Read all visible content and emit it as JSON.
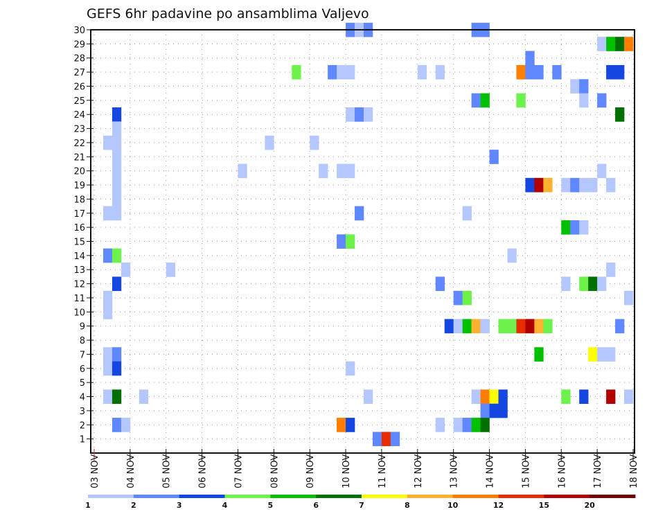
{
  "chart_data": {
    "type": "heatmap",
    "title": "GEFS 6hr padavine po ansamblima Valjevo",
    "xlabel": "",
    "ylabel": "",
    "x_step_hours": 6,
    "x_start": "03 NOV 00Z",
    "x_tick_labels": [
      "03 NOV",
      "04 NOV",
      "05 NOV",
      "06 NOV",
      "07 NOV",
      "08 NOV",
      "09 NOV",
      "10 NOV",
      "11 NOV",
      "12 NOV",
      "13 NOV",
      "14 NOV",
      "15 NOV",
      "16 NOV",
      "17 NOV",
      "18 NOV"
    ],
    "y_tick_labels": [
      "1",
      "2",
      "3",
      "4",
      "5",
      "6",
      "7",
      "8",
      "9",
      "10",
      "11",
      "12",
      "13",
      "14",
      "15",
      "16",
      "17",
      "18",
      "19",
      "20",
      "21",
      "22",
      "23",
      "24",
      "25",
      "26",
      "27",
      "28",
      "29",
      "30"
    ],
    "ylim": [
      0,
      30
    ],
    "grid": true,
    "colorbar": {
      "placement": "bottom",
      "boundaries": [
        "1",
        "2",
        "3",
        "4",
        "5",
        "6",
        "7",
        "8",
        "10",
        "12",
        "15",
        "20"
      ],
      "colors": [
        "#b4c8ff",
        "#5f87ff",
        "#1446e1",
        "#6cf24a",
        "#00c000",
        "#007000",
        "#ffff00",
        "#ffb030",
        "#ff7d00",
        "#e62d00",
        "#b00000",
        "#6e0000"
      ]
    },
    "cells_note": "each cell: [member (row), time-step index from 03 NOV 00Z in 6h steps, color class 1-12]",
    "cells": [
      [
        30,
        28,
        2
      ],
      [
        30,
        29,
        1
      ],
      [
        30,
        30,
        2
      ],
      [
        30,
        42,
        2
      ],
      [
        30,
        43,
        2
      ],
      [
        29,
        56,
        1
      ],
      [
        29,
        57,
        5
      ],
      [
        29,
        58,
        6
      ],
      [
        29,
        59,
        9
      ],
      [
        28,
        48,
        2
      ],
      [
        27,
        22,
        4
      ],
      [
        27,
        26,
        2
      ],
      [
        27,
        27,
        1
      ],
      [
        27,
        28,
        1
      ],
      [
        27,
        36,
        1
      ],
      [
        27,
        38,
        1
      ],
      [
        27,
        47,
        9
      ],
      [
        27,
        48,
        2
      ],
      [
        27,
        49,
        2
      ],
      [
        27,
        51,
        2
      ],
      [
        27,
        57,
        3
      ],
      [
        27,
        58,
        3
      ],
      [
        26,
        53,
        1
      ],
      [
        26,
        54,
        2
      ],
      [
        25,
        42,
        2
      ],
      [
        25,
        43,
        5
      ],
      [
        25,
        47,
        4
      ],
      [
        25,
        54,
        1
      ],
      [
        25,
        56,
        2
      ],
      [
        24,
        2,
        3
      ],
      [
        24,
        28,
        1
      ],
      [
        24,
        29,
        2
      ],
      [
        24,
        30,
        1
      ],
      [
        24,
        58,
        6
      ],
      [
        23,
        2,
        1
      ],
      [
        22,
        1,
        1
      ],
      [
        22,
        2,
        1
      ],
      [
        22,
        19,
        1
      ],
      [
        22,
        24,
        1
      ],
      [
        21,
        2,
        1
      ],
      [
        21,
        44,
        2
      ],
      [
        20,
        2,
        1
      ],
      [
        20,
        16,
        1
      ],
      [
        20,
        25,
        1
      ],
      [
        20,
        27,
        1
      ],
      [
        20,
        28,
        1
      ],
      [
        20,
        56,
        1
      ],
      [
        19,
        2,
        1
      ],
      [
        19,
        48,
        3
      ],
      [
        19,
        49,
        11
      ],
      [
        19,
        50,
        8
      ],
      [
        19,
        52,
        1
      ],
      [
        19,
        53,
        2
      ],
      [
        19,
        54,
        1
      ],
      [
        19,
        55,
        1
      ],
      [
        19,
        57,
        1
      ],
      [
        18,
        2,
        1
      ],
      [
        17,
        1,
        1
      ],
      [
        17,
        2,
        1
      ],
      [
        17,
        29,
        2
      ],
      [
        17,
        41,
        1
      ],
      [
        16,
        52,
        5
      ],
      [
        16,
        53,
        2
      ],
      [
        16,
        54,
        1
      ],
      [
        15,
        27,
        2
      ],
      [
        15,
        28,
        4
      ],
      [
        14,
        1,
        2
      ],
      [
        14,
        2,
        4
      ],
      [
        14,
        46,
        1
      ],
      [
        13,
        3,
        1
      ],
      [
        13,
        8,
        1
      ],
      [
        13,
        57,
        1
      ],
      [
        12,
        2,
        3
      ],
      [
        12,
        38,
        2
      ],
      [
        12,
        52,
        1
      ],
      [
        12,
        54,
        4
      ],
      [
        12,
        55,
        6
      ],
      [
        12,
        56,
        1
      ],
      [
        11,
        1,
        1
      ],
      [
        11,
        40,
        2
      ],
      [
        11,
        41,
        4
      ],
      [
        11,
        59,
        1
      ],
      [
        9,
        39,
        3
      ],
      [
        9,
        40,
        1
      ],
      [
        9,
        41,
        5
      ],
      [
        9,
        42,
        8
      ],
      [
        9,
        43,
        1
      ],
      [
        9,
        45,
        4
      ],
      [
        9,
        46,
        4
      ],
      [
        9,
        47,
        10
      ],
      [
        9,
        48,
        11
      ],
      [
        9,
        49,
        8
      ],
      [
        9,
        50,
        4
      ],
      [
        9,
        58,
        2
      ],
      [
        10,
        1,
        1
      ],
      [
        7,
        1,
        1
      ],
      [
        7,
        2,
        2
      ],
      [
        7,
        49,
        5
      ],
      [
        7,
        55,
        7
      ],
      [
        7,
        56,
        1
      ],
      [
        7,
        57,
        1
      ],
      [
        6,
        1,
        1
      ],
      [
        6,
        2,
        3
      ],
      [
        6,
        28,
        1
      ],
      [
        4,
        1,
        1
      ],
      [
        4,
        2,
        6
      ],
      [
        4,
        5,
        1
      ],
      [
        4,
        30,
        1
      ],
      [
        4,
        42,
        1
      ],
      [
        4,
        43,
        9
      ],
      [
        4,
        44,
        7
      ],
      [
        4,
        45,
        3
      ],
      [
        4,
        52,
        4
      ],
      [
        4,
        54,
        3
      ],
      [
        4,
        57,
        11
      ],
      [
        4,
        59,
        1
      ],
      [
        3,
        43,
        2
      ],
      [
        3,
        44,
        3
      ],
      [
        3,
        45,
        3
      ],
      [
        2,
        2,
        2
      ],
      [
        2,
        3,
        1
      ],
      [
        2,
        27,
        9
      ],
      [
        2,
        28,
        3
      ],
      [
        2,
        38,
        1
      ],
      [
        2,
        40,
        1
      ],
      [
        2,
        41,
        2
      ],
      [
        2,
        42,
        5
      ],
      [
        2,
        43,
        6
      ],
      [
        1,
        31,
        2
      ],
      [
        1,
        32,
        10
      ],
      [
        1,
        33,
        2
      ]
    ]
  }
}
